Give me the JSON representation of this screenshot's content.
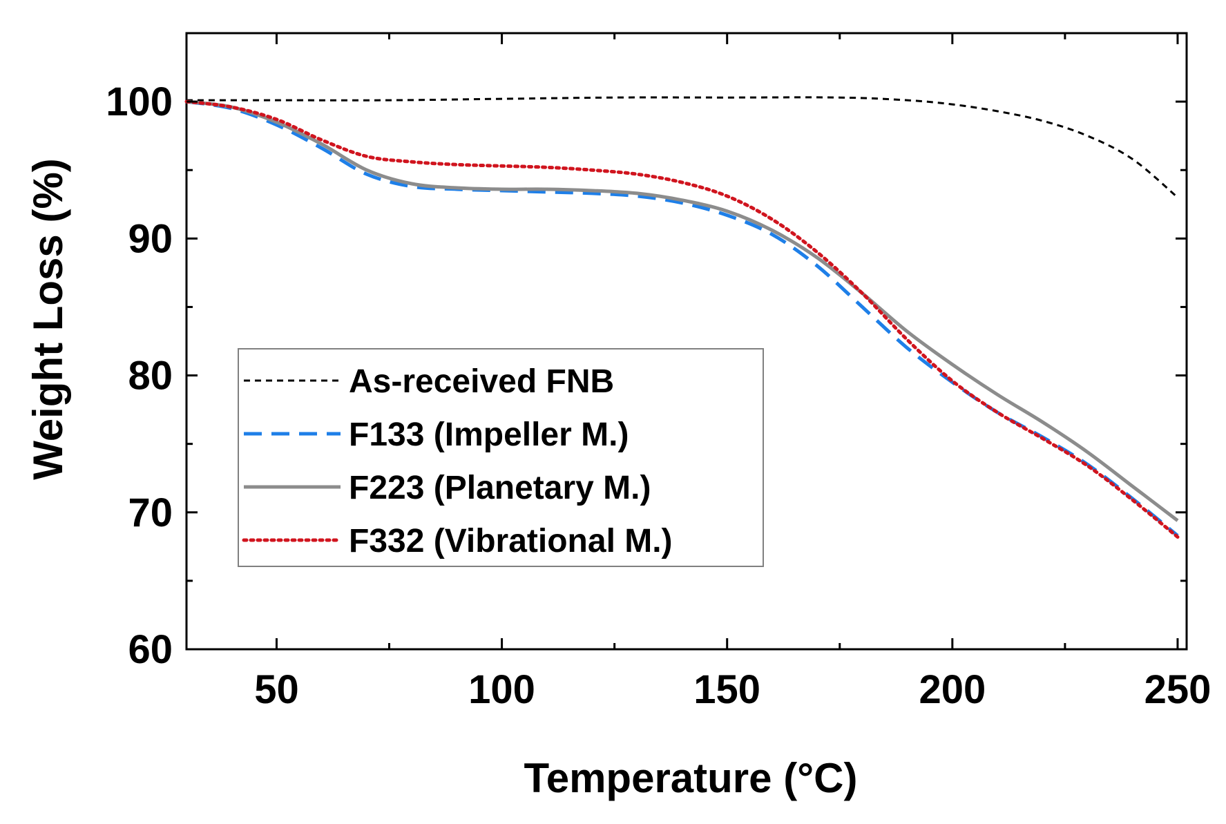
{
  "chart_data": {
    "type": "line",
    "xlabel": "Temperature (°C)",
    "ylabel": "Weight Loss (%)",
    "xlim": [
      30,
      252
    ],
    "ylim": [
      60,
      105
    ],
    "xticks": [
      50,
      100,
      150,
      200,
      250
    ],
    "xticks_minor": [
      75,
      125,
      175,
      225
    ],
    "yticks": [
      60,
      70,
      80,
      90,
      100
    ],
    "yticks_minor": [
      65,
      75,
      85,
      95
    ],
    "legend_position": "center-left",
    "series": [
      {
        "name": "As-received FNB",
        "color": "#000000",
        "style": "short-dash",
        "x": [
          30,
          50,
          75,
          100,
          125,
          150,
          175,
          190,
          200,
          210,
          220,
          230,
          240,
          250
        ],
        "y": [
          100.1,
          100.1,
          100.1,
          100.2,
          100.3,
          100.3,
          100.3,
          100.1,
          99.8,
          99.3,
          98.6,
          97.5,
          95.8,
          93.0
        ]
      },
      {
        "name": "F133 (Impeller M.)",
        "color": "#1E7FE8",
        "style": "long-dash",
        "x": [
          30,
          40,
          50,
          60,
          70,
          80,
          90,
          100,
          110,
          120,
          130,
          140,
          150,
          160,
          170,
          180,
          190,
          200,
          210,
          220,
          230,
          240,
          250
        ],
        "y": [
          100.0,
          99.5,
          98.3,
          96.6,
          94.7,
          93.8,
          93.6,
          93.5,
          93.4,
          93.3,
          93.1,
          92.6,
          91.7,
          90.3,
          88.0,
          85.0,
          82.0,
          79.5,
          77.3,
          75.5,
          73.5,
          71.0,
          68.3
        ]
      },
      {
        "name": "F223 (Planetary M.)",
        "color": "#8C8C8C",
        "style": "solid",
        "x": [
          30,
          40,
          50,
          60,
          70,
          80,
          90,
          100,
          110,
          120,
          130,
          140,
          150,
          160,
          170,
          180,
          190,
          200,
          210,
          220,
          230,
          240,
          250
        ],
        "y": [
          100.0,
          99.6,
          98.5,
          96.9,
          95.0,
          94.0,
          93.7,
          93.6,
          93.6,
          93.5,
          93.3,
          92.8,
          92.0,
          90.6,
          88.6,
          86.0,
          83.2,
          80.8,
          78.6,
          76.6,
          74.4,
          71.9,
          69.4
        ]
      },
      {
        "name": "F332 (Vibrational M.)",
        "color": "#D0141E",
        "style": "dotted",
        "x": [
          30,
          40,
          50,
          60,
          70,
          80,
          90,
          100,
          110,
          120,
          130,
          140,
          150,
          160,
          170,
          180,
          190,
          200,
          210,
          220,
          230,
          240,
          250
        ],
        "y": [
          100.0,
          99.6,
          98.7,
          97.2,
          96.0,
          95.6,
          95.4,
          95.3,
          95.2,
          95.0,
          94.7,
          94.1,
          93.1,
          91.4,
          89.0,
          86.0,
          82.6,
          79.6,
          77.3,
          75.4,
          73.4,
          70.9,
          68.2
        ]
      }
    ]
  }
}
